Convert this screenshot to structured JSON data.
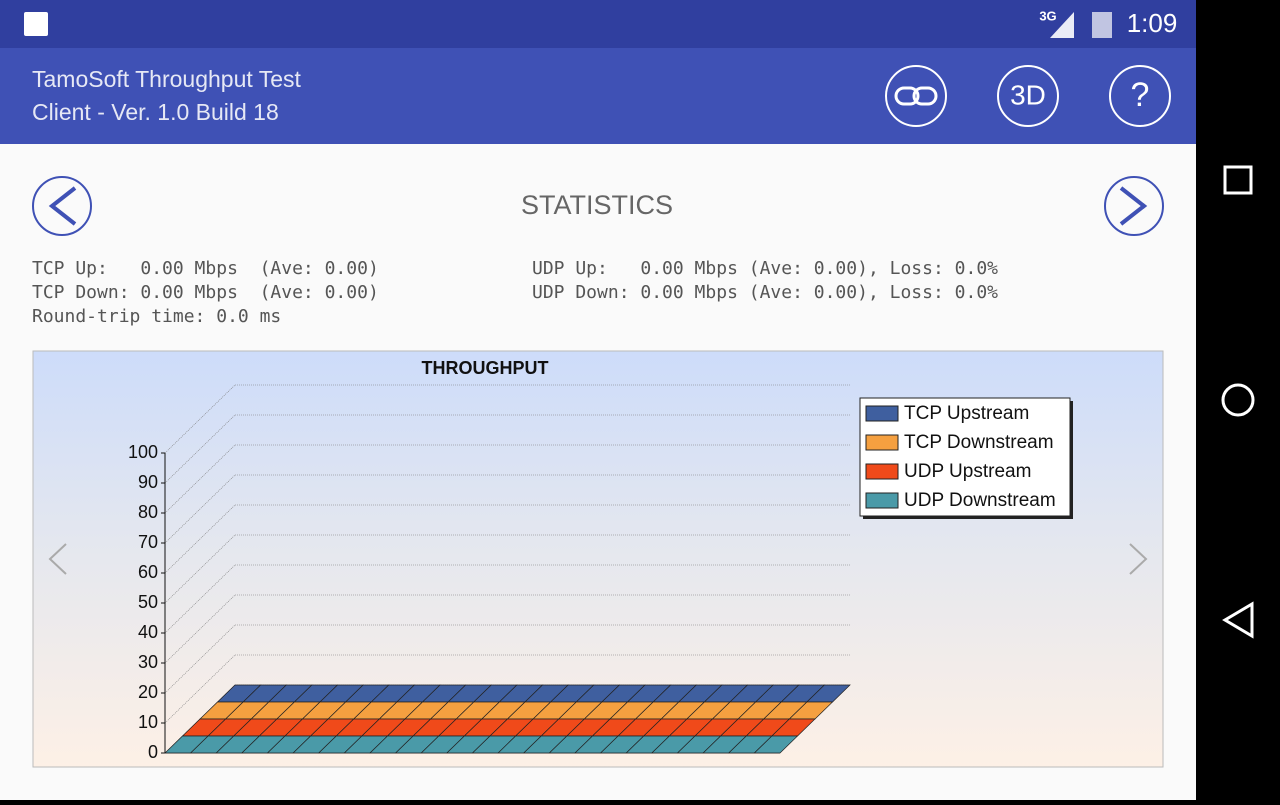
{
  "status": {
    "network": "3G",
    "time": "1:09"
  },
  "app_bar": {
    "title": "TamoSoft Throughput Test",
    "subtitle": "Client - Ver. 1.0 Build 18",
    "buttons": [
      "3D",
      "?"
    ]
  },
  "statistics": {
    "title": "STATISTICS",
    "lines": [
      "TCP Up:   0.00 Mbps  (Ave: 0.00)",
      "TCP Down: 0.00 Mbps  (Ave: 0.00)",
      "Round-trip time: 0.0 ms"
    ],
    "udp_lines": [
      "UDP Up:   0.00 Mbps (Ave: 0.00), Loss: 0.0%",
      "UDP Down: 0.00 Mbps (Ave: 0.00), Loss: 0.0%"
    ]
  },
  "chart_data": {
    "type": "area3d",
    "title": "THROUGHPUT",
    "ylim": [
      0,
      100
    ],
    "yticks": [
      0,
      10,
      20,
      30,
      40,
      50,
      60,
      70,
      80,
      90,
      100
    ],
    "grid": true,
    "legend": "top-right",
    "series": [
      {
        "name": "TCP Upstream",
        "color": "#3f5f9f",
        "values": [
          0,
          0,
          0,
          0,
          0,
          0,
          0,
          0,
          0,
          0,
          0,
          0,
          0,
          0,
          0,
          0,
          0,
          0,
          0,
          0,
          0,
          0,
          0,
          0,
          0
        ]
      },
      {
        "name": "TCP Downstream",
        "color": "#f5a040",
        "values": [
          0,
          0,
          0,
          0,
          0,
          0,
          0,
          0,
          0,
          0,
          0,
          0,
          0,
          0,
          0,
          0,
          0,
          0,
          0,
          0,
          0,
          0,
          0,
          0,
          0
        ]
      },
      {
        "name": "UDP Upstream",
        "color": "#f04a1a",
        "values": [
          0,
          0,
          0,
          0,
          0,
          0,
          0,
          0,
          0,
          0,
          0,
          0,
          0,
          0,
          0,
          0,
          0,
          0,
          0,
          0,
          0,
          0,
          0,
          0,
          0
        ]
      },
      {
        "name": "UDP Downstream",
        "color": "#4a9aa8",
        "values": [
          0,
          0,
          0,
          0,
          0,
          0,
          0,
          0,
          0,
          0,
          0,
          0,
          0,
          0,
          0,
          0,
          0,
          0,
          0,
          0,
          0,
          0,
          0,
          0,
          0
        ]
      }
    ]
  }
}
